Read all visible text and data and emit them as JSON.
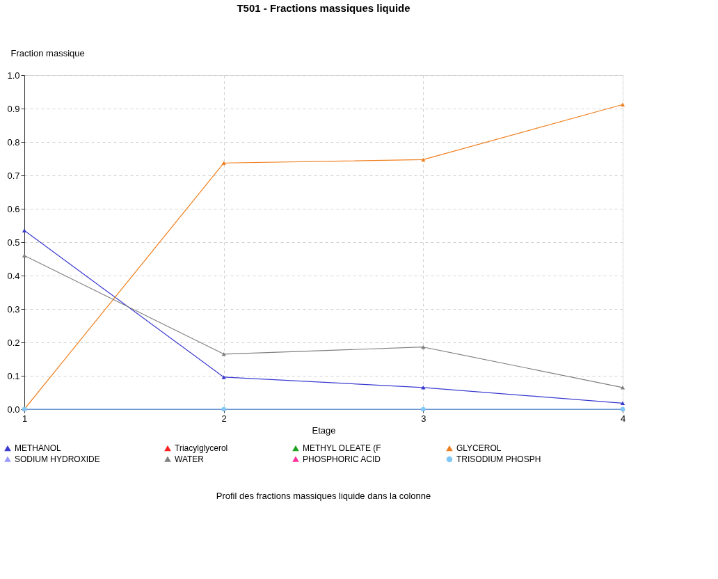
{
  "chart_data": {
    "type": "line",
    "title": "T501 - Fractions massiques liquide",
    "xlabel": "Etage",
    "ylabel": "Fraction massique",
    "annotations": [
      "Profil des fractions massiques liquide dans la colonne"
    ],
    "x": [
      1,
      2,
      3,
      4
    ],
    "xlim": [
      1,
      4
    ],
    "xticks": [
      1,
      2,
      3,
      4
    ],
    "ylim": [
      0,
      1
    ],
    "yticks": [
      {
        "value": 0,
        "label": "0.0"
      },
      0.1,
      0.2,
      0.3,
      0.4,
      0.5,
      0.6,
      0.7,
      0.8,
      0.9,
      {
        "value": 1,
        "label": "1.0"
      }
    ],
    "grid": true,
    "legend": "bottom",
    "marker": "triangle",
    "line_style": "solid",
    "series": [
      {
        "name": "METHANOL",
        "color": "#3a3ad0",
        "values": [
          0.535,
          0.096,
          0.065,
          0.018
        ]
      },
      {
        "name": "Triacylglycerol",
        "color": "#ff2020",
        "values": [
          null,
          null,
          null,
          null
        ]
      },
      {
        "name": "METHYL OLEATE (F",
        "color": "#20a020",
        "values": [
          null,
          null,
          null,
          null
        ]
      },
      {
        "name": "GLYCEROL",
        "color": "#f08020",
        "values": [
          0,
          0.737,
          0.747,
          0.912
        ]
      },
      {
        "name": "SODIUM HYDROXIDE",
        "color": "#9999ff",
        "values": [
          0,
          0,
          0,
          0
        ]
      },
      {
        "name": "WATER",
        "color": "#808080",
        "values": [
          0.46,
          0.165,
          0.186,
          0.065
        ]
      },
      {
        "name": "PHOSPHORIC ACID",
        "color": "#ff3399",
        "values": [
          null,
          null,
          null,
          null
        ]
      },
      {
        "name": "TRISODIUM PHOSPH",
        "color": "#80c8f8",
        "marker": "circle",
        "values": [
          0,
          0,
          0,
          0
        ]
      }
    ]
  }
}
